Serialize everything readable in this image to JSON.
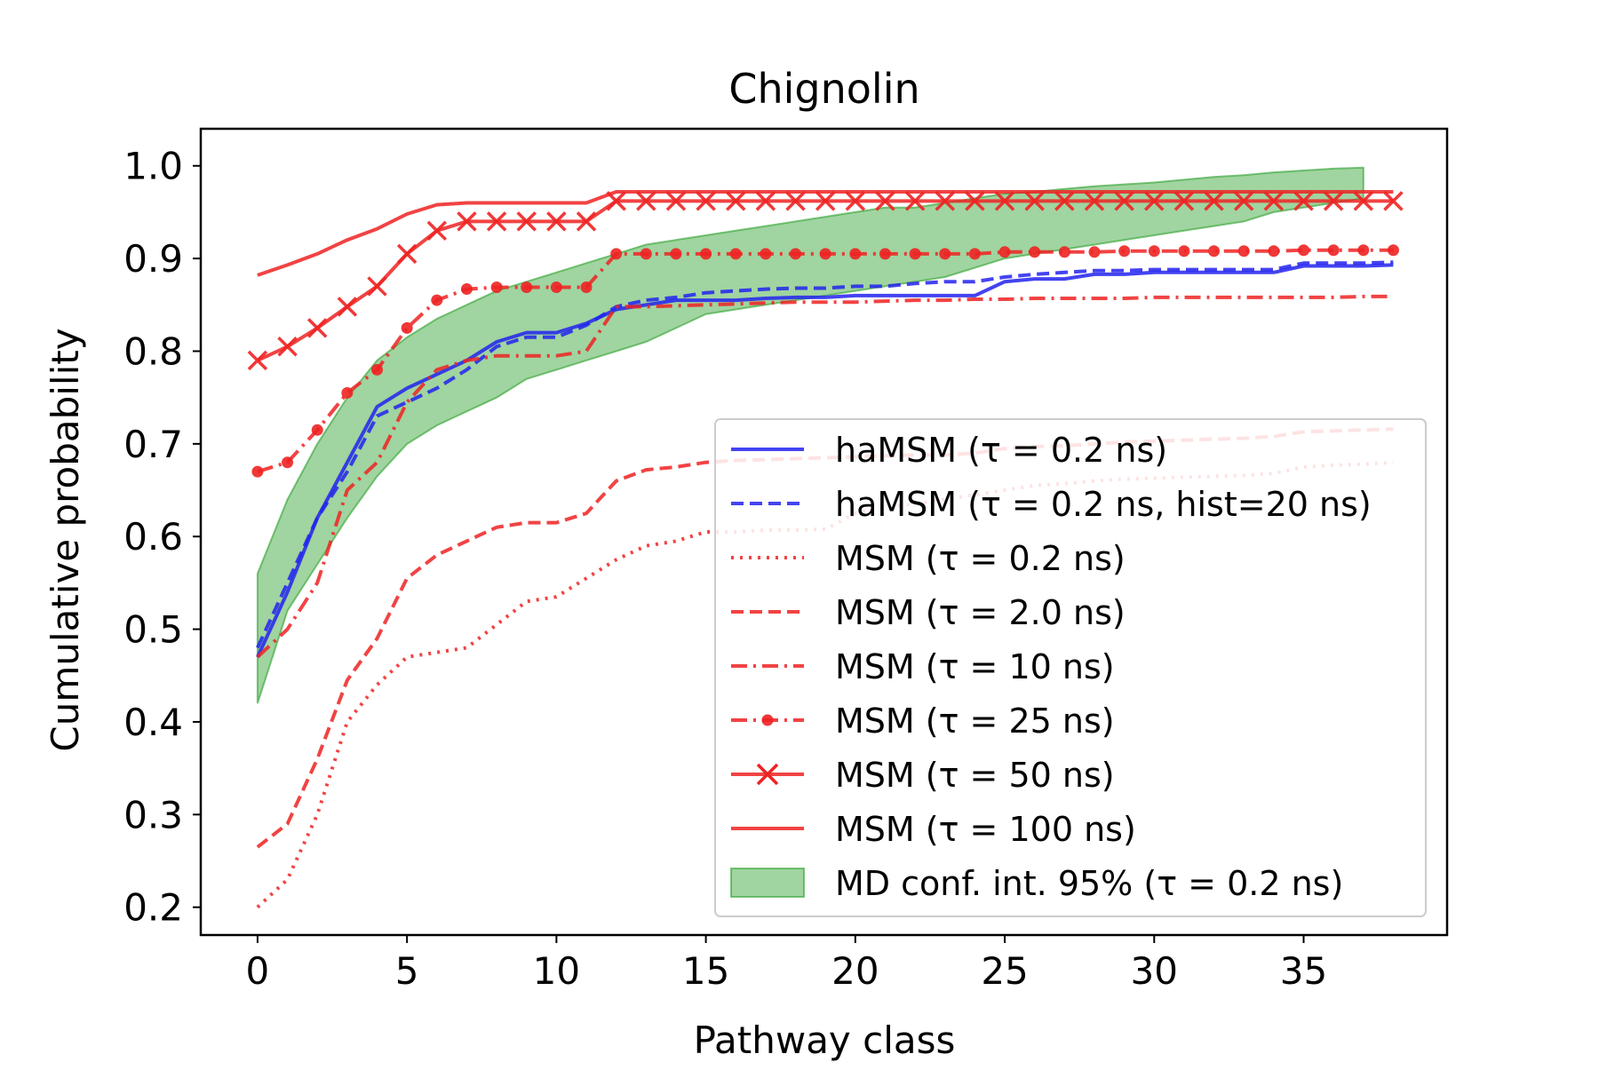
{
  "chart_data": {
    "type": "line",
    "title": "Chignolin",
    "xlabel": "Pathway class",
    "ylabel": "Cumulative probability",
    "xlim": [
      -1.9,
      39.8
    ],
    "ylim": [
      0.17,
      1.04
    ],
    "xticks": [
      0,
      5,
      10,
      15,
      20,
      25,
      30,
      35
    ],
    "xtick_labels": [
      "0",
      "5",
      "10",
      "15",
      "20",
      "25",
      "30",
      "35"
    ],
    "yticks": [
      0.2,
      0.3,
      0.4,
      0.5,
      0.6,
      0.7,
      0.8,
      0.9,
      1.0
    ],
    "ytick_labels": [
      "0.2",
      "0.3",
      "0.4",
      "0.5",
      "0.6",
      "0.7",
      "0.8",
      "0.9",
      "1.0"
    ],
    "grid": false,
    "legend_position": "lower-right",
    "band": {
      "name": "MD conf. int. 95% (τ = 0.2 ns)",
      "color": "#2ca02c",
      "x": [
        0,
        1,
        2,
        3,
        4,
        5,
        6,
        7,
        8,
        9,
        10,
        11,
        12,
        13,
        14,
        15,
        16,
        17,
        18,
        19,
        20,
        21,
        22,
        23,
        24,
        25,
        26,
        27,
        28,
        29,
        30,
        31,
        32,
        33,
        34,
        35,
        36,
        37
      ],
      "upper": [
        0.56,
        0.64,
        0.7,
        0.75,
        0.79,
        0.815,
        0.835,
        0.85,
        0.865,
        0.875,
        0.885,
        0.895,
        0.905,
        0.915,
        0.92,
        0.925,
        0.93,
        0.935,
        0.94,
        0.945,
        0.95,
        0.955,
        0.955,
        0.96,
        0.965,
        0.97,
        0.972,
        0.975,
        0.978,
        0.98,
        0.982,
        0.985,
        0.988,
        0.99,
        0.993,
        0.995,
        0.997,
        0.998
      ],
      "lower": [
        0.42,
        0.52,
        0.57,
        0.62,
        0.665,
        0.7,
        0.72,
        0.735,
        0.75,
        0.77,
        0.78,
        0.79,
        0.8,
        0.81,
        0.825,
        0.84,
        0.845,
        0.85,
        0.855,
        0.86,
        0.865,
        0.87,
        0.875,
        0.88,
        0.89,
        0.9,
        0.905,
        0.91,
        0.915,
        0.92,
        0.925,
        0.93,
        0.935,
        0.94,
        0.95,
        0.955,
        0.96,
        0.965
      ]
    },
    "series": [
      {
        "name": "haMSM (τ = 0.2 ns)",
        "color": "#2222ee",
        "style": "solid",
        "marker": "none",
        "x": [
          0,
          1,
          2,
          3,
          4,
          5,
          6,
          7,
          8,
          9,
          10,
          11,
          12,
          13,
          14,
          15,
          16,
          17,
          18,
          19,
          20,
          21,
          22,
          23,
          24,
          25,
          26,
          27,
          28,
          29,
          30,
          31,
          32,
          33,
          34,
          35,
          36,
          37,
          38
        ],
        "values": [
          0.47,
          0.54,
          0.62,
          0.68,
          0.74,
          0.76,
          0.775,
          0.79,
          0.81,
          0.82,
          0.82,
          0.83,
          0.845,
          0.85,
          0.855,
          0.855,
          0.855,
          0.857,
          0.858,
          0.858,
          0.86,
          0.86,
          0.86,
          0.86,
          0.86,
          0.875,
          0.878,
          0.878,
          0.883,
          0.883,
          0.885,
          0.885,
          0.885,
          0.885,
          0.885,
          0.892,
          0.892,
          0.892,
          0.893
        ]
      },
      {
        "name": "haMSM (τ = 0.2 ns, hist=20 ns)",
        "color": "#2222ee",
        "style": "dashed",
        "marker": "none",
        "x": [
          0,
          1,
          2,
          3,
          4,
          5,
          6,
          7,
          8,
          9,
          10,
          11,
          12,
          13,
          14,
          15,
          16,
          17,
          18,
          19,
          20,
          21,
          22,
          23,
          24,
          25,
          26,
          27,
          28,
          29,
          30,
          31,
          32,
          33,
          34,
          35,
          36,
          37,
          38
        ],
        "values": [
          0.48,
          0.55,
          0.62,
          0.67,
          0.73,
          0.745,
          0.76,
          0.78,
          0.805,
          0.815,
          0.815,
          0.828,
          0.848,
          0.855,
          0.858,
          0.863,
          0.865,
          0.867,
          0.868,
          0.868,
          0.87,
          0.87,
          0.873,
          0.875,
          0.875,
          0.88,
          0.883,
          0.885,
          0.887,
          0.887,
          0.888,
          0.888,
          0.888,
          0.888,
          0.888,
          0.895,
          0.895,
          0.895,
          0.896
        ]
      },
      {
        "name": "MSM (τ = 0.2 ns)",
        "color": "#ee2222",
        "style": "dotted",
        "marker": "none",
        "x": [
          0,
          1,
          2,
          3,
          4,
          5,
          6,
          7,
          8,
          9,
          10,
          11,
          12,
          13,
          14,
          15,
          16,
          17,
          18,
          19,
          20,
          21,
          22,
          23,
          24,
          25,
          26,
          27,
          28,
          29,
          30,
          31,
          32,
          33,
          34,
          35,
          36,
          37,
          38
        ],
        "values": [
          0.2,
          0.23,
          0.3,
          0.4,
          0.44,
          0.47,
          0.475,
          0.48,
          0.505,
          0.53,
          0.535,
          0.555,
          0.575,
          0.59,
          0.595,
          0.605,
          0.605,
          0.607,
          0.607,
          0.608,
          0.625,
          0.632,
          0.635,
          0.64,
          0.645,
          0.65,
          0.655,
          0.657,
          0.66,
          0.662,
          0.663,
          0.664,
          0.665,
          0.666,
          0.668,
          0.675,
          0.677,
          0.678,
          0.68
        ]
      },
      {
        "name": "MSM (τ = 2.0 ns)",
        "color": "#ee2222",
        "style": "dashed",
        "marker": "none",
        "x": [
          0,
          1,
          2,
          3,
          4,
          5,
          6,
          7,
          8,
          9,
          10,
          11,
          12,
          13,
          14,
          15,
          16,
          17,
          18,
          19,
          20,
          21,
          22,
          23,
          24,
          25,
          26,
          27,
          28,
          29,
          30,
          31,
          32,
          33,
          34,
          35,
          36,
          37,
          38
        ],
        "values": [
          0.265,
          0.29,
          0.36,
          0.445,
          0.49,
          0.555,
          0.58,
          0.595,
          0.61,
          0.615,
          0.615,
          0.625,
          0.66,
          0.672,
          0.675,
          0.68,
          0.682,
          0.683,
          0.684,
          0.685,
          0.686,
          0.687,
          0.688,
          0.688,
          0.69,
          0.695,
          0.697,
          0.698,
          0.7,
          0.702,
          0.703,
          0.704,
          0.705,
          0.706,
          0.708,
          0.713,
          0.714,
          0.715,
          0.716
        ]
      },
      {
        "name": "MSM (τ = 10 ns)",
        "color": "#ee2222",
        "style": "dashdot",
        "marker": "none",
        "x": [
          0,
          1,
          2,
          3,
          4,
          5,
          6,
          7,
          8,
          9,
          10,
          11,
          12,
          13,
          14,
          15,
          16,
          17,
          18,
          19,
          20,
          21,
          22,
          23,
          24,
          25,
          26,
          27,
          28,
          29,
          30,
          31,
          32,
          33,
          34,
          35,
          36,
          37,
          38
        ],
        "values": [
          0.47,
          0.5,
          0.55,
          0.65,
          0.68,
          0.745,
          0.78,
          0.79,
          0.795,
          0.795,
          0.795,
          0.8,
          0.848,
          0.848,
          0.849,
          0.85,
          0.851,
          0.852,
          0.853,
          0.853,
          0.853,
          0.854,
          0.855,
          0.855,
          0.856,
          0.856,
          0.857,
          0.857,
          0.857,
          0.857,
          0.858,
          0.858,
          0.858,
          0.858,
          0.858,
          0.858,
          0.858,
          0.859,
          0.859
        ]
      },
      {
        "name": "MSM (τ = 25 ns)",
        "color": "#ee2222",
        "style": "dashdot",
        "marker": "circle",
        "x": [
          0,
          1,
          2,
          3,
          4,
          5,
          6,
          7,
          8,
          9,
          10,
          11,
          12,
          13,
          14,
          15,
          16,
          17,
          18,
          19,
          20,
          21,
          22,
          23,
          24,
          25,
          26,
          27,
          28,
          29,
          30,
          31,
          32,
          33,
          34,
          35,
          36,
          37,
          38
        ],
        "values": [
          0.67,
          0.68,
          0.715,
          0.755,
          0.78,
          0.825,
          0.855,
          0.867,
          0.869,
          0.869,
          0.869,
          0.869,
          0.905,
          0.905,
          0.905,
          0.905,
          0.905,
          0.905,
          0.905,
          0.905,
          0.905,
          0.905,
          0.905,
          0.905,
          0.905,
          0.907,
          0.907,
          0.907,
          0.907,
          0.908,
          0.908,
          0.908,
          0.908,
          0.908,
          0.908,
          0.909,
          0.909,
          0.909,
          0.909
        ]
      },
      {
        "name": "MSM (τ = 50 ns)",
        "color": "#ee2222",
        "style": "solid",
        "marker": "x",
        "x": [
          0,
          1,
          2,
          3,
          4,
          5,
          6,
          7,
          8,
          9,
          10,
          11,
          12,
          13,
          14,
          15,
          16,
          17,
          18,
          19,
          20,
          21,
          22,
          23,
          24,
          25,
          26,
          27,
          28,
          29,
          30,
          31,
          32,
          33,
          34,
          35,
          36,
          37,
          38
        ],
        "values": [
          0.79,
          0.805,
          0.825,
          0.848,
          0.87,
          0.905,
          0.93,
          0.94,
          0.94,
          0.94,
          0.94,
          0.94,
          0.962,
          0.962,
          0.962,
          0.962,
          0.962,
          0.962,
          0.962,
          0.962,
          0.962,
          0.962,
          0.962,
          0.962,
          0.962,
          0.962,
          0.962,
          0.962,
          0.962,
          0.962,
          0.962,
          0.962,
          0.962,
          0.962,
          0.962,
          0.962,
          0.962,
          0.962,
          0.962
        ]
      },
      {
        "name": "MSM (τ = 100 ns)",
        "color": "#ee2222",
        "style": "solid",
        "marker": "none",
        "x": [
          0,
          1,
          2,
          3,
          4,
          5,
          6,
          7,
          8,
          9,
          10,
          11,
          12,
          13,
          14,
          15,
          16,
          17,
          18,
          19,
          20,
          21,
          22,
          23,
          24,
          25,
          26,
          27,
          28,
          29,
          30,
          31,
          32,
          33,
          34,
          35,
          36,
          37,
          38
        ],
        "values": [
          0.882,
          0.893,
          0.905,
          0.92,
          0.932,
          0.948,
          0.958,
          0.96,
          0.96,
          0.96,
          0.96,
          0.96,
          0.972,
          0.972,
          0.972,
          0.972,
          0.972,
          0.972,
          0.972,
          0.972,
          0.972,
          0.972,
          0.972,
          0.972,
          0.972,
          0.972,
          0.972,
          0.972,
          0.972,
          0.972,
          0.972,
          0.972,
          0.972,
          0.972,
          0.972,
          0.972,
          0.972,
          0.972,
          0.972
        ]
      }
    ]
  }
}
